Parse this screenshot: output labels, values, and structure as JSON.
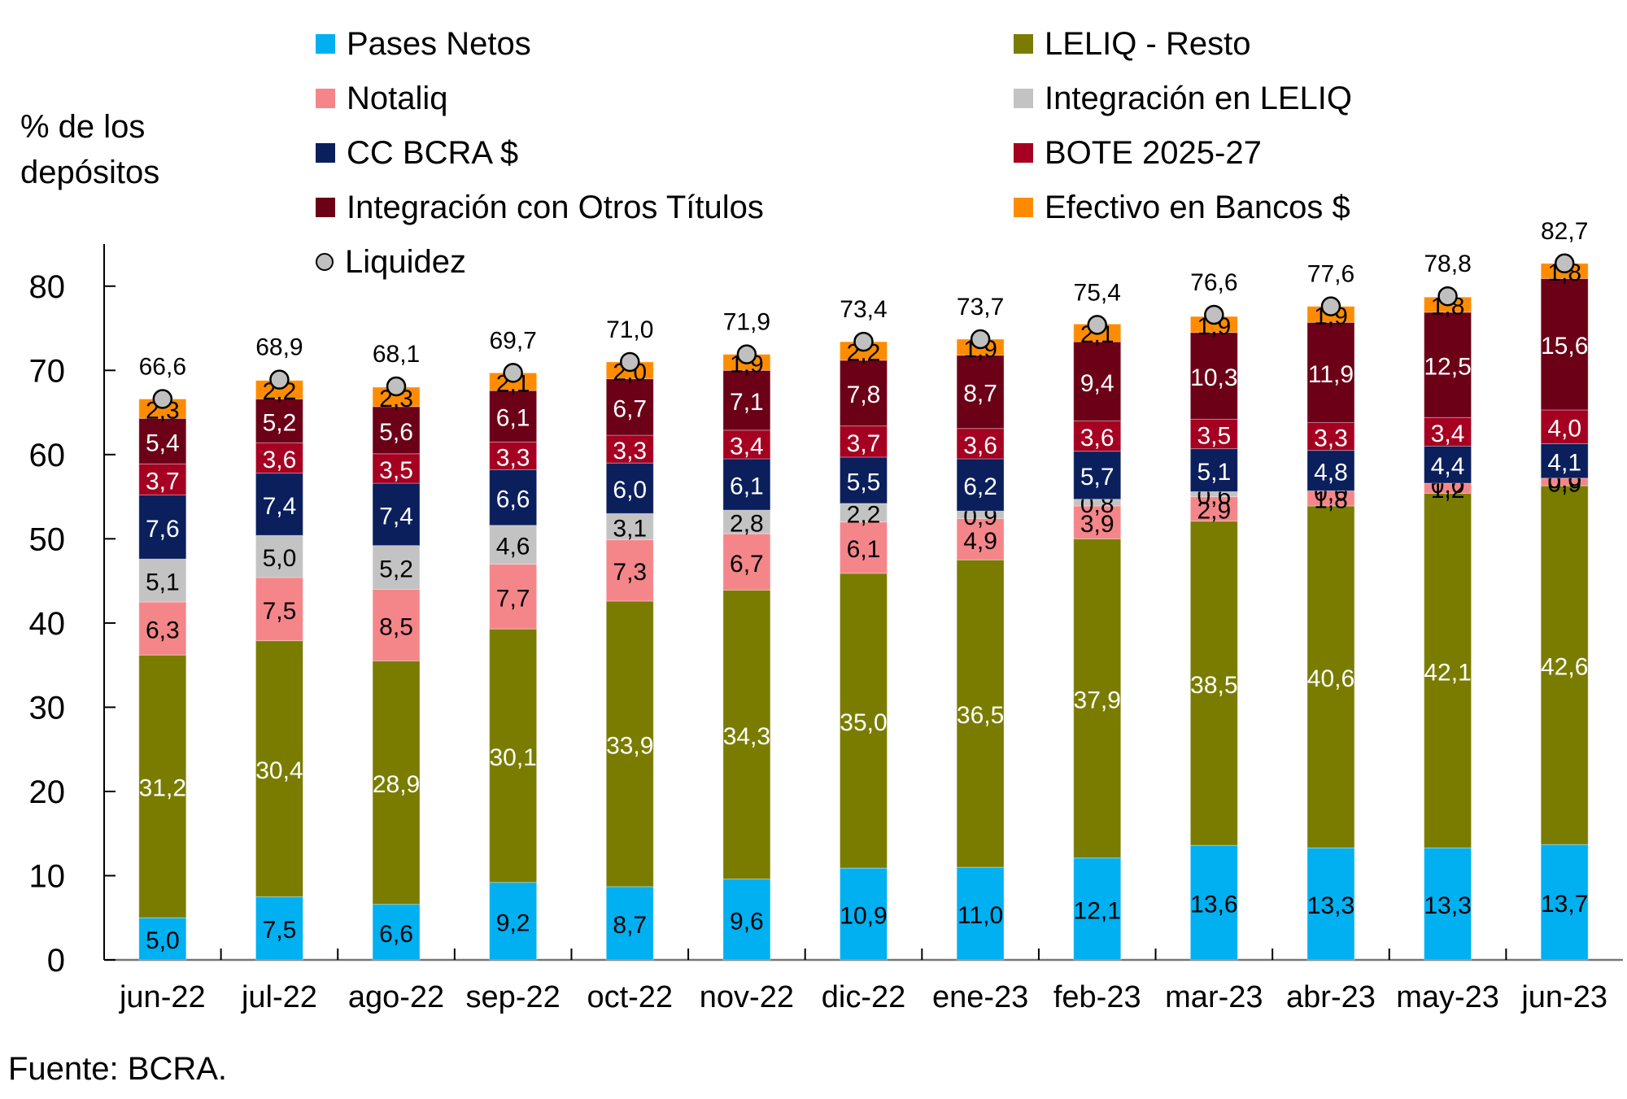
{
  "chart_data": {
    "type": "bar",
    "stacked": true,
    "title": "",
    "ylabel_lines": [
      "% de los",
      "depósitos"
    ],
    "xlabel": "",
    "ylim": [
      0,
      85
    ],
    "yticks": [
      0,
      10,
      20,
      30,
      40,
      50,
      60,
      70,
      80
    ],
    "grid": false,
    "legend_position": "top",
    "categories": [
      "jun-22",
      "jul-22",
      "ago-22",
      "sep-22",
      "oct-22",
      "nov-22",
      "dic-22",
      "ene-23",
      "feb-23",
      "mar-23",
      "abr-23",
      "may-23",
      "jun-23"
    ],
    "series": [
      {
        "name": "Pases Netos",
        "color": "#00B0F0",
        "label_color": "#000000",
        "values": [
          5.0,
          7.5,
          6.6,
          9.2,
          8.7,
          9.6,
          10.9,
          11.0,
          12.1,
          13.6,
          13.3,
          13.3,
          13.7
        ]
      },
      {
        "name": "LELIQ - Resto",
        "color": "#7A7C00",
        "label_color": "#FFFFFF",
        "values": [
          31.2,
          30.4,
          28.9,
          30.1,
          33.9,
          34.3,
          35.0,
          36.5,
          37.9,
          38.5,
          40.6,
          42.1,
          42.6
        ]
      },
      {
        "name": "Notaliq",
        "color": "#F4868A",
        "label_color": "#000000",
        "values": [
          6.3,
          7.5,
          8.5,
          7.7,
          7.3,
          6.7,
          6.1,
          4.9,
          3.9,
          2.9,
          1.8,
          1.2,
          0.9
        ]
      },
      {
        "name": "Integración en LELIQ",
        "color": "#C3C3C3",
        "label_color": "#000000",
        "values": [
          5.1,
          5.0,
          5.2,
          4.6,
          3.1,
          2.8,
          2.2,
          0.9,
          0.8,
          0.6,
          0.0,
          0.0,
          0.0
        ]
      },
      {
        "name": "CC BCRA $",
        "color": "#0A1F5C",
        "label_color": "#FFFFFF",
        "values": [
          7.6,
          7.4,
          7.4,
          6.6,
          6.0,
          6.1,
          5.5,
          6.2,
          5.7,
          5.1,
          4.8,
          4.4,
          4.1
        ]
      },
      {
        "name": "BOTE 2025-27",
        "color": "#A50021",
        "label_color": "#FFFFFF",
        "values": [
          3.7,
          3.6,
          3.5,
          3.3,
          3.3,
          3.4,
          3.7,
          3.6,
          3.6,
          3.5,
          3.3,
          3.4,
          4.0
        ]
      },
      {
        "name": "Integración con Otros Títulos",
        "color": "#6B0017",
        "label_color": "#FFFFFF",
        "values": [
          5.4,
          5.2,
          5.6,
          6.1,
          6.7,
          7.1,
          7.8,
          8.7,
          9.4,
          10.3,
          11.9,
          12.5,
          15.6
        ]
      },
      {
        "name": "Efectivo en Bancos $",
        "color": "#FF8C00",
        "label_color": "#000000",
        "values": [
          2.3,
          2.2,
          2.3,
          2.1,
          2.0,
          1.9,
          2.2,
          1.9,
          2.1,
          1.9,
          1.9,
          1.8,
          1.8
        ]
      }
    ],
    "liquidez": {
      "name": "Liquidez",
      "color": "#C0C0C0",
      "values": [
        66.6,
        68.9,
        68.1,
        69.7,
        71.0,
        71.9,
        73.4,
        73.7,
        75.4,
        76.6,
        77.6,
        78.8,
        82.7
      ]
    },
    "decimal_separator": ","
  },
  "source": "Fuente: BCRA."
}
